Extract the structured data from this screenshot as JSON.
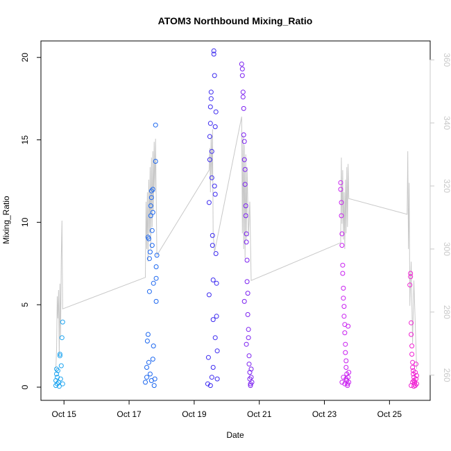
{
  "chart_data": {
    "type": "scatter",
    "title": "ATOM3 Northbound Mixing_Ratio",
    "xlabel": "Date",
    "ylabel": "Mixing_Ratio",
    "x_ticks": [
      "Oct 15",
      "Oct 17",
      "Oct 19",
      "Oct 21",
      "Oct 23",
      "Oct 25"
    ],
    "y_ticks": [
      "0",
      "5",
      "10",
      "15",
      "20"
    ],
    "y2_ticks": [
      "260",
      "280",
      "300",
      "320",
      "340",
      "360"
    ],
    "xlim": [
      "2016-10-14 07:00",
      "2016-10-26 06:00"
    ],
    "ylim": [
      -0.8,
      21.0
    ],
    "y2lim": [
      252,
      366
    ],
    "grid": false,
    "colors": {
      "axis": "#000000",
      "secondary_axis": "#c8c8c8",
      "secondary_line": "#c8c8c8"
    },
    "series": [
      {
        "color": "#1aa3f0",
        "points": [
          [
            "2016-10-14 18:00",
            0.1
          ],
          [
            "2016-10-14 18:00",
            0.4
          ],
          [
            "2016-10-14 18:30",
            0.8
          ],
          [
            "2016-10-14 18:30",
            1.1
          ],
          [
            "2016-10-14 19:00",
            0.2
          ],
          [
            "2016-10-14 19:00",
            0.6
          ],
          [
            "2016-10-14 19:30",
            1.0
          ],
          [
            "2016-10-14 20:00",
            0.3
          ],
          [
            "2016-10-14 20:30",
            0.05
          ],
          [
            "2016-10-14 21:00",
            1.9
          ],
          [
            "2016-10-14 21:00",
            2.0
          ],
          [
            "2016-10-14 21:30",
            0.5
          ],
          [
            "2016-10-14 22:00",
            1.3
          ],
          [
            "2016-10-14 22:30",
            3.0
          ],
          [
            "2016-10-14 23:00",
            3.95
          ],
          [
            "2016-10-14 23:00",
            0.2
          ]
        ]
      },
      {
        "color": "#1a66f0",
        "points": [
          [
            "2016-10-17 12:00",
            0.3
          ],
          [
            "2016-10-17 13:00",
            0.6
          ],
          [
            "2016-10-17 13:30",
            2.8
          ],
          [
            "2016-10-17 14:00",
            9.1
          ],
          [
            "2016-10-17 14:00",
            3.2
          ],
          [
            "2016-10-17 14:30",
            9.0
          ],
          [
            "2016-10-17 15:00",
            7.8
          ],
          [
            "2016-10-17 15:00",
            5.8
          ],
          [
            "2016-10-17 15:30",
            8.2
          ],
          [
            "2016-10-17 16:00",
            10.4
          ],
          [
            "2016-10-17 16:00",
            11.0
          ],
          [
            "2016-10-17 16:30",
            11.5
          ],
          [
            "2016-10-17 16:30",
            11.9
          ],
          [
            "2016-10-17 17:00",
            9.5
          ],
          [
            "2016-10-17 17:00",
            8.6
          ],
          [
            "2016-10-17 17:30",
            10.6
          ],
          [
            "2016-10-17 17:30",
            12.0
          ],
          [
            "2016-10-17 18:00",
            6.3
          ],
          [
            "2016-10-17 18:00",
            2.5
          ],
          [
            "2016-10-17 18:30",
            0.1
          ],
          [
            "2016-10-17 19:00",
            0.5
          ],
          [
            "2016-10-17 19:30",
            13.7
          ],
          [
            "2016-10-17 19:30",
            15.9
          ],
          [
            "2016-10-17 20:00",
            5.2
          ],
          [
            "2016-10-17 20:00",
            6.6
          ],
          [
            "2016-10-17 20:00",
            7.3
          ],
          [
            "2016-10-17 20:30",
            8.0
          ],
          [
            "2016-10-17 13:00",
            1.2
          ],
          [
            "2016-10-17 14:30",
            1.5
          ],
          [
            "2016-10-17 15:30",
            0.8
          ],
          [
            "2016-10-17 16:30",
            0.4
          ],
          [
            "2016-10-17 17:30",
            1.7
          ]
        ]
      },
      {
        "color": "#3a28f0",
        "points": [
          [
            "2016-10-19 10:00",
            0.2
          ],
          [
            "2016-10-19 10:30",
            1.8
          ],
          [
            "2016-10-19 11:00",
            5.6
          ],
          [
            "2016-10-19 11:00",
            11.2
          ],
          [
            "2016-10-19 11:30",
            13.8
          ],
          [
            "2016-10-19 11:30",
            15.2
          ],
          [
            "2016-10-19 12:00",
            16.0
          ],
          [
            "2016-10-19 12:00",
            17.0
          ],
          [
            "2016-10-19 12:30",
            17.5
          ],
          [
            "2016-10-19 12:30",
            17.9
          ],
          [
            "2016-10-19 13:00",
            14.3
          ],
          [
            "2016-10-19 13:00",
            12.7
          ],
          [
            "2016-10-19 13:30",
            9.2
          ],
          [
            "2016-10-19 13:30",
            8.6
          ],
          [
            "2016-10-19 14:00",
            6.5
          ],
          [
            "2016-10-19 14:00",
            4.1
          ],
          [
            "2016-10-19 14:30",
            20.4
          ],
          [
            "2016-10-19 14:30",
            20.2
          ],
          [
            "2016-10-19 15:00",
            18.9
          ],
          [
            "2016-10-19 15:00",
            12.2
          ],
          [
            "2016-10-19 15:30",
            11.7
          ],
          [
            "2016-10-19 15:30",
            15.8
          ],
          [
            "2016-10-19 16:00",
            16.7
          ],
          [
            "2016-10-19 16:00",
            8.1
          ],
          [
            "2016-10-19 16:30",
            6.3
          ],
          [
            "2016-10-19 16:30",
            4.3
          ],
          [
            "2016-10-19 17:00",
            2.2
          ],
          [
            "2016-10-19 17:00",
            0.5
          ],
          [
            "2016-10-19 12:00",
            0.1
          ],
          [
            "2016-10-19 13:00",
            0.6
          ],
          [
            "2016-10-19 14:00",
            1.2
          ],
          [
            "2016-10-19 15:30",
            3.0
          ]
        ]
      },
      {
        "color": "#7a1ef0",
        "points": [
          [
            "2016-10-20 11:00",
            19.6
          ],
          [
            "2016-10-20 11:30",
            19.3
          ],
          [
            "2016-10-20 11:30",
            18.9
          ],
          [
            "2016-10-20 12:00",
            17.9
          ],
          [
            "2016-10-20 12:00",
            17.6
          ],
          [
            "2016-10-20 12:30",
            16.9
          ],
          [
            "2016-10-20 12:30",
            15.3
          ],
          [
            "2016-10-20 13:00",
            14.9
          ],
          [
            "2016-10-20 13:00",
            13.8
          ],
          [
            "2016-10-20 13:30",
            13.2
          ],
          [
            "2016-10-20 13:30",
            12.3
          ],
          [
            "2016-10-20 14:00",
            11.0
          ],
          [
            "2016-10-20 14:00",
            10.4
          ],
          [
            "2016-10-20 14:30",
            9.3
          ],
          [
            "2016-10-20 14:30",
            8.8
          ],
          [
            "2016-10-20 15:00",
            7.7
          ],
          [
            "2016-10-20 15:00",
            6.4
          ],
          [
            "2016-10-20 15:30",
            5.7
          ],
          [
            "2016-10-20 15:30",
            4.4
          ],
          [
            "2016-10-20 16:00",
            3.5
          ],
          [
            "2016-10-20 16:00",
            3.0
          ],
          [
            "2016-10-20 16:30",
            1.9
          ],
          [
            "2016-10-20 16:30",
            1.4
          ],
          [
            "2016-10-20 17:00",
            0.9
          ],
          [
            "2016-10-20 17:00",
            0.5
          ],
          [
            "2016-10-20 17:30",
            0.2
          ],
          [
            "2016-10-20 17:30",
            0.1
          ],
          [
            "2016-10-20 18:00",
            0.6
          ],
          [
            "2016-10-20 18:00",
            1.1
          ],
          [
            "2016-10-20 18:30",
            0.3
          ],
          [
            "2016-10-20 13:00",
            5.2
          ],
          [
            "2016-10-20 14:30",
            2.6
          ]
        ]
      },
      {
        "color": "#c81ef0",
        "points": [
          [
            "2016-10-23 12:00",
            12.4
          ],
          [
            "2016-10-23 12:00",
            12.0
          ],
          [
            "2016-10-23 12:30",
            11.2
          ],
          [
            "2016-10-23 12:30",
            10.4
          ],
          [
            "2016-10-23 13:00",
            9.3
          ],
          [
            "2016-10-23 13:00",
            8.6
          ],
          [
            "2016-10-23 13:30",
            7.4
          ],
          [
            "2016-10-23 13:30",
            6.9
          ],
          [
            "2016-10-23 14:00",
            6.0
          ],
          [
            "2016-10-23 14:00",
            5.4
          ],
          [
            "2016-10-23 14:30",
            4.9
          ],
          [
            "2016-10-23 14:30",
            4.3
          ],
          [
            "2016-10-23 15:00",
            3.8
          ],
          [
            "2016-10-23 15:00",
            3.3
          ],
          [
            "2016-10-23 15:30",
            2.6
          ],
          [
            "2016-10-23 15:30",
            2.1
          ],
          [
            "2016-10-23 16:00",
            1.6
          ],
          [
            "2016-10-23 16:00",
            1.2
          ],
          [
            "2016-10-23 16:30",
            0.8
          ],
          [
            "2016-10-23 16:30",
            0.4
          ],
          [
            "2016-10-23 17:00",
            0.2
          ],
          [
            "2016-10-23 17:00",
            0.1
          ],
          [
            "2016-10-23 17:30",
            3.7
          ],
          [
            "2016-10-23 17:30",
            0.6
          ],
          [
            "2016-10-23 18:00",
            0.3
          ],
          [
            "2016-10-23 18:00",
            0.9
          ],
          [
            "2016-10-23 13:00",
            0.3
          ],
          [
            "2016-10-23 14:00",
            0.6
          ],
          [
            "2016-10-23 15:00",
            0.2
          ],
          [
            "2016-10-23 16:00",
            0.5
          ]
        ]
      },
      {
        "color": "#f01ed2",
        "points": [
          [
            "2016-10-25 15:00",
            6.2
          ],
          [
            "2016-10-25 15:30",
            6.9
          ],
          [
            "2016-10-25 15:30",
            6.7
          ],
          [
            "2016-10-25 16:00",
            3.9
          ],
          [
            "2016-10-25 16:00",
            3.2
          ],
          [
            "2016-10-25 16:30",
            2.5
          ],
          [
            "2016-10-25 16:30",
            2.0
          ],
          [
            "2016-10-25 17:00",
            1.5
          ],
          [
            "2016-10-25 17:00",
            1.2
          ],
          [
            "2016-10-25 17:30",
            1.0
          ],
          [
            "2016-10-25 17:30",
            0.8
          ],
          [
            "2016-10-25 18:00",
            0.6
          ],
          [
            "2016-10-25 18:00",
            0.4
          ],
          [
            "2016-10-25 18:30",
            0.3
          ],
          [
            "2016-10-25 18:30",
            0.2
          ],
          [
            "2016-10-25 19:00",
            0.1
          ],
          [
            "2016-10-25 19:00",
            0.9
          ],
          [
            "2016-10-25 19:30",
            1.4
          ],
          [
            "2016-10-25 19:30",
            0.5
          ],
          [
            "2016-10-25 20:00",
            0.2
          ],
          [
            "2016-10-25 20:00",
            0.7
          ],
          [
            "2016-10-25 16:00",
            0.1
          ],
          [
            "2016-10-25 17:00",
            0.3
          ],
          [
            "2016-10-25 18:00",
            0.05
          ]
        ]
      }
    ],
    "secondary_line": [
      [
        "2016-10-14 18:00",
        262
      ],
      [
        "2016-10-14 18:30",
        268
      ],
      [
        "2016-10-14 19:00",
        285
      ],
      [
        "2016-10-14 19:30",
        278
      ],
      [
        "2016-10-14 20:00",
        287
      ],
      [
        "2016-10-14 20:30",
        266
      ],
      [
        "2016-10-14 21:00",
        289
      ],
      [
        "2016-10-14 21:30",
        272
      ],
      [
        "2016-10-14 22:00",
        297
      ],
      [
        "2016-10-14 22:30",
        309
      ],
      [
        "2016-10-14 23:00",
        281
      ],
      [
        "2016-10-17 12:00",
        291
      ],
      [
        "2016-10-17 12:30",
        315
      ],
      [
        "2016-10-17 13:00",
        300
      ],
      [
        "2016-10-17 13:30",
        318
      ],
      [
        "2016-10-17 14:00",
        296
      ],
      [
        "2016-10-17 14:30",
        322
      ],
      [
        "2016-10-17 15:00",
        305
      ],
      [
        "2016-10-17 15:30",
        326
      ],
      [
        "2016-10-17 16:00",
        300
      ],
      [
        "2016-10-17 16:30",
        329
      ],
      [
        "2016-10-17 17:00",
        307
      ],
      [
        "2016-10-17 17:30",
        331
      ],
      [
        "2016-10-17 18:00",
        312
      ],
      [
        "2016-10-17 18:30",
        334
      ],
      [
        "2016-10-17 19:00",
        318
      ],
      [
        "2016-10-17 19:30",
        335
      ],
      [
        "2016-10-17 20:30",
        298
      ],
      [
        "2016-10-19 11:00",
        325
      ],
      [
        "2016-10-19 11:30",
        332
      ],
      [
        "2016-10-19 12:00",
        318
      ],
      [
        "2016-10-19 12:30",
        336
      ],
      [
        "2016-10-19 13:00",
        322
      ],
      [
        "2016-10-19 13:30",
        338
      ],
      [
        "2016-10-19 14:00",
        305
      ],
      [
        "2016-10-19 15:00",
        299
      ],
      [
        "2016-10-20 11:00",
        342
      ],
      [
        "2016-10-20 11:30",
        305
      ],
      [
        "2016-10-20 12:00",
        336
      ],
      [
        "2016-10-20 12:30",
        300
      ],
      [
        "2016-10-20 13:00",
        333
      ],
      [
        "2016-10-20 13:30",
        297
      ],
      [
        "2016-10-20 14:00",
        330
      ],
      [
        "2016-10-20 14:30",
        303
      ],
      [
        "2016-10-20 15:00",
        326
      ],
      [
        "2016-10-20 16:00",
        304
      ],
      [
        "2016-10-20 17:00",
        315
      ],
      [
        "2016-10-20 18:00",
        290
      ],
      [
        "2016-10-23 12:00",
        302
      ],
      [
        "2016-10-23 12:30",
        329
      ],
      [
        "2016-10-23 13:00",
        308
      ],
      [
        "2016-10-23 13:30",
        325
      ],
      [
        "2016-10-23 14:00",
        303
      ],
      [
        "2016-10-23 14:30",
        318
      ],
      [
        "2016-10-23 15:00",
        300
      ],
      [
        "2016-10-23 15:30",
        322
      ],
      [
        "2016-10-23 16:00",
        305
      ],
      [
        "2016-10-23 16:30",
        326
      ],
      [
        "2016-10-23 17:00",
        307
      ],
      [
        "2016-10-23 17:30",
        327
      ],
      [
        "2016-10-23 18:00",
        316
      ],
      [
        "2016-10-25 13:00",
        311
      ],
      [
        "2016-10-25 13:30",
        331
      ],
      [
        "2016-10-25 14:00",
        300
      ],
      [
        "2016-10-25 14:30",
        321
      ],
      [
        "2016-10-25 15:00",
        282
      ],
      [
        "2016-10-25 16:00",
        296
      ],
      [
        "2016-10-25 17:00",
        270
      ],
      [
        "2016-10-25 18:00",
        290
      ],
      [
        "2016-10-25 19:00",
        276
      ],
      [
        "2016-10-25 20:00",
        262
      ]
    ]
  }
}
